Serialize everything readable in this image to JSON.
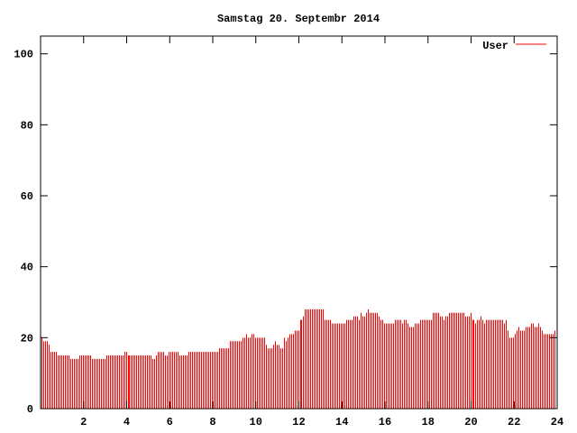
{
  "chart_data": {
    "type": "bar",
    "style": "impulses",
    "title": "Samstag 20. Septembr 2014",
    "xlabel": "",
    "ylabel": "",
    "xlim": [
      0,
      24
    ],
    "ylim": [
      0,
      105
    ],
    "grid": false,
    "legend_position": "top-right",
    "x_ticks": [
      "2",
      "4",
      "6",
      "8",
      "10",
      "12",
      "14",
      "16",
      "18",
      "20",
      "22",
      "24"
    ],
    "y_ticks": [
      "0",
      "20",
      "40",
      "60",
      "80",
      "100"
    ],
    "series": [
      {
        "name": "User",
        "color": "#ff0000",
        "values": [
          20,
          19,
          19,
          19,
          18,
          16,
          16,
          16,
          16,
          15,
          15,
          15,
          15,
          15,
          15,
          15,
          14,
          14,
          14,
          14,
          14,
          15,
          15,
          15,
          15,
          15,
          15,
          15,
          14,
          14,
          14,
          14,
          14,
          14,
          14,
          14,
          15,
          15,
          15,
          15,
          15,
          15,
          15,
          15,
          15,
          15,
          16,
          16,
          15,
          15,
          15,
          15,
          15,
          15,
          15,
          15,
          15,
          15,
          15,
          15,
          15,
          15,
          14,
          14,
          15,
          16,
          16,
          16,
          16,
          15,
          15,
          16,
          16,
          16,
          16,
          16,
          16,
          15,
          15,
          15,
          15,
          15,
          16,
          16,
          16,
          16,
          16,
          16,
          16,
          16,
          16,
          16,
          16,
          16,
          16,
          16,
          16,
          16,
          16,
          17,
          17,
          17,
          17,
          17,
          17,
          19,
          19,
          19,
          19,
          19,
          19,
          19,
          20,
          20,
          21,
          20,
          20,
          21,
          21,
          20,
          20,
          20,
          20,
          20,
          20,
          18,
          17,
          17,
          17,
          18,
          19,
          18,
          18,
          17,
          17,
          20,
          19,
          20,
          21,
          21,
          21,
          22,
          22,
          22,
          25,
          25,
          26,
          28,
          28,
          28,
          28,
          28,
          28,
          28,
          28,
          28,
          28,
          28,
          25,
          25,
          25,
          25,
          24,
          24,
          24,
          24,
          24,
          24,
          24,
          24,
          25,
          25,
          25,
          25,
          26,
          26,
          26,
          25,
          27,
          26,
          26,
          27,
          28,
          27,
          27,
          27,
          27,
          27,
          26,
          25,
          25,
          24,
          24,
          24,
          24,
          24,
          24,
          25,
          25,
          25,
          25,
          24,
          25,
          25,
          24,
          23,
          23,
          23,
          24,
          24,
          24,
          25,
          25,
          25,
          25,
          25,
          25,
          25,
          27,
          27,
          27,
          27,
          26,
          26,
          25,
          26,
          26,
          27,
          27,
          27,
          27,
          27,
          27,
          27,
          27,
          27,
          26,
          26,
          26,
          27,
          25,
          25,
          24,
          25,
          25,
          26,
          25,
          24,
          25,
          25,
          25,
          25,
          25,
          25,
          25,
          25,
          25,
          25,
          24,
          25,
          22,
          20,
          20,
          20,
          21,
          22,
          23,
          22,
          22,
          22,
          23,
          23,
          23,
          24,
          24,
          23,
          23,
          24,
          23,
          22,
          21,
          21,
          21,
          21,
          21,
          21,
          22
        ]
      }
    ]
  }
}
